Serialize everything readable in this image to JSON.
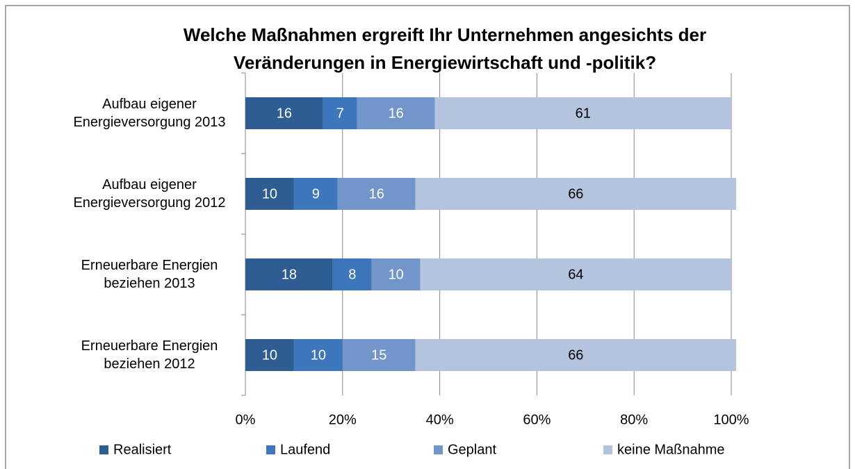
{
  "chart_data": {
    "type": "stacked_bar_horizontal",
    "title": "Welche Maßnahmen ergreift Ihr Unternehmen angesichts der Veränderungen in Energiewirtschaft und -politik?",
    "categories": [
      "Aufbau eigener Energieversorgung 2013",
      "Aufbau eigener Energieversorgung 2012",
      "Erneuerbare Energien beziehen 2013",
      "Erneuerbare Energien beziehen 2012"
    ],
    "series": [
      {
        "name": "Realisiert",
        "color": "#2e5d93",
        "values": [
          16,
          10,
          18,
          10
        ]
      },
      {
        "name": "Laufend",
        "color": "#3e76bb",
        "values": [
          7,
          9,
          8,
          10
        ]
      },
      {
        "name": "Geplant",
        "color": "#7396ca",
        "values": [
          16,
          16,
          10,
          15
        ]
      },
      {
        "name": "keine Maßnahme",
        "color": "#b4c3de",
        "values": [
          61,
          66,
          64,
          66
        ]
      }
    ],
    "xlim": [
      0,
      100
    ],
    "xticks": [
      {
        "value": 0,
        "label": "0%"
      },
      {
        "value": 20,
        "label": "20%"
      },
      {
        "value": 40,
        "label": "40%"
      },
      {
        "value": 60,
        "label": "60%"
      },
      {
        "value": 80,
        "label": "80%"
      },
      {
        "value": 100,
        "label": "100%"
      }
    ],
    "grid": true,
    "legend": "bottom"
  }
}
